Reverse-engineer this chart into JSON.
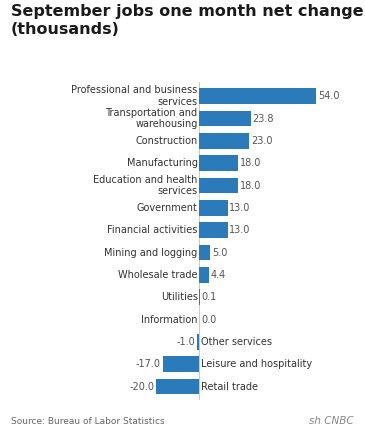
{
  "title_line1": "September jobs one month net change",
  "title_line2": "(thousands)",
  "categories": [
    "Professional and business\nservices",
    "Transportation and\nwarehousing",
    "Construction",
    "Manufacturing",
    "Education and health\nservices",
    "Government",
    "Financial activities",
    "Mining and logging",
    "Wholesale trade",
    "Utilities",
    "Information",
    "Other services",
    "Leisure and hospitality",
    "Retail trade"
  ],
  "values": [
    54.0,
    23.8,
    23.0,
    18.0,
    18.0,
    13.0,
    13.0,
    5.0,
    4.4,
    0.1,
    0.0,
    -1.0,
    -17.0,
    -20.0
  ],
  "bar_color": "#2b7bba",
  "title_fontsize": 11.5,
  "label_fontsize": 7,
  "value_fontsize": 7,
  "source_text": "Source: Bureau of Labor Statistics",
  "background_color": "#ffffff",
  "xlim": [
    -28,
    68
  ]
}
